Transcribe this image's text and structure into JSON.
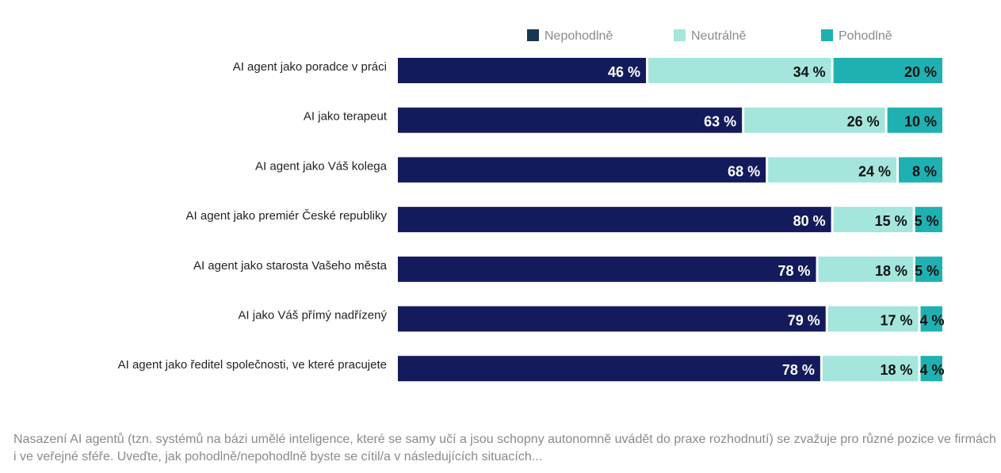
{
  "chart_data": {
    "type": "bar",
    "orientation": "horizontal",
    "stacked": true,
    "title": "",
    "xlabel": "",
    "ylabel": "",
    "xlim": [
      0,
      100
    ],
    "grid": false,
    "legend_position": "top",
    "categories": [
      "AI agent jako poradce v práci",
      "AI jako terapeut",
      "AI agent jako Váš kolega",
      "AI agent jako premiér České republiky",
      "AI agent jako starosta Vašeho města",
      "AI jako Váš přímý nadřízený",
      "AI agent jako ředitel společnosti, ve které pracujete"
    ],
    "series": [
      {
        "name": "Nepohodlně",
        "color": "#131b5c",
        "label_color": "#ffffff",
        "values": [
          46,
          63,
          68,
          80,
          78,
          79,
          78
        ]
      },
      {
        "name": "Neutrálně",
        "color": "#a4e6dc",
        "label_color": "#111111",
        "values": [
          34,
          26,
          24,
          15,
          18,
          17,
          18
        ]
      },
      {
        "name": "Pohodlně",
        "color": "#1fb1b1",
        "label_color": "#111111",
        "values": [
          20,
          10,
          8,
          5,
          5,
          4,
          4
        ]
      }
    ],
    "value_suffix": " %",
    "legend_swatch_color": "#17374f"
  },
  "footnote": "Nasazení AI agentů (tzn. systémů na bázi umělé inteligence, které se samy učí a jsou schopny autonomně uvádět do praxe rozhodnutí) se zvažuje pro různé pozice ve firmách i ve veřejné sféře. Uveďte, jak pohodlně/nepohodlně byste se cítil/a v následujících situacích..."
}
